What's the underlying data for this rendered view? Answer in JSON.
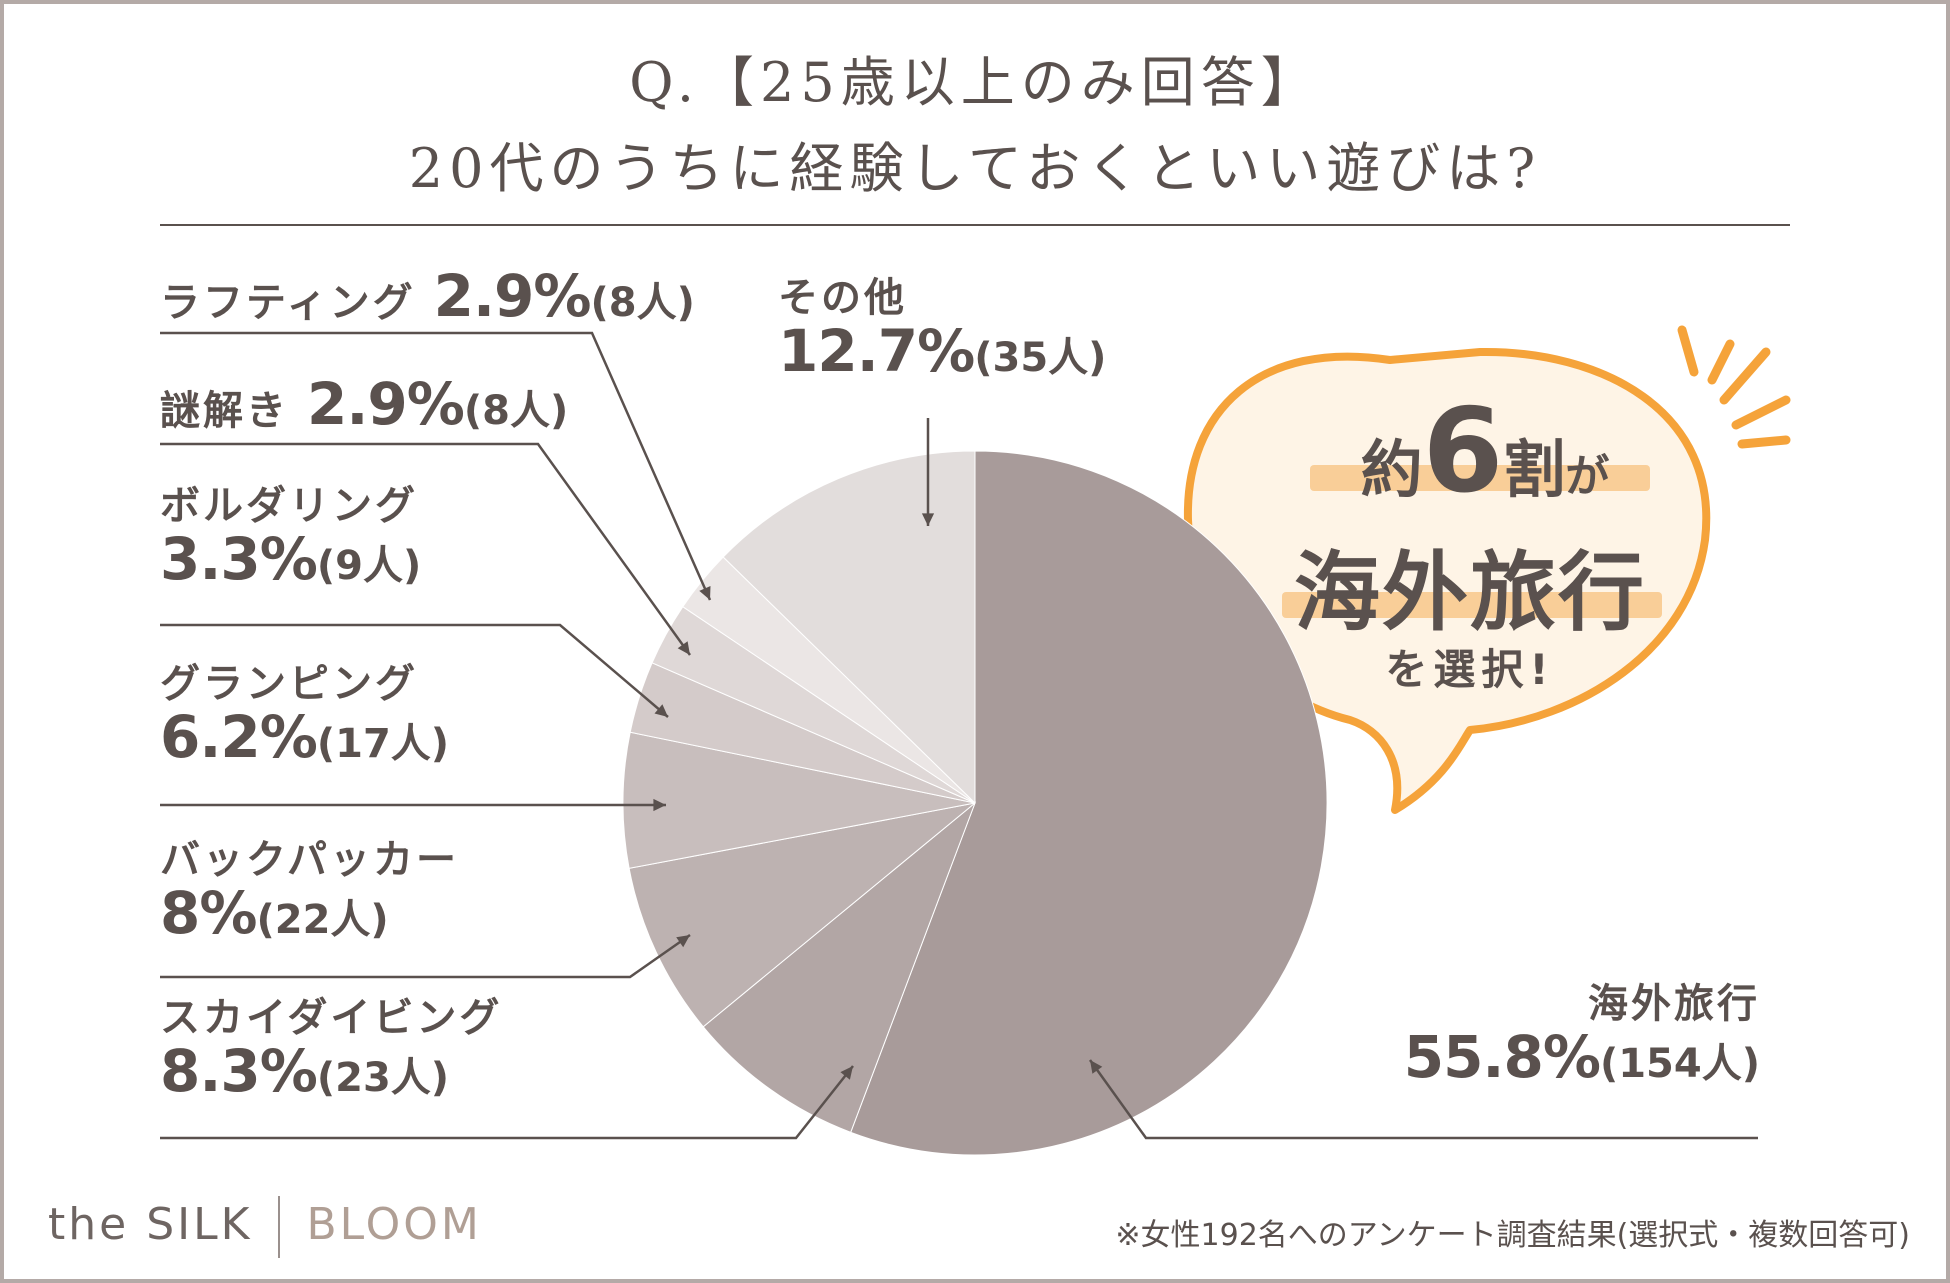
{
  "title_line1": "Q.【25歳以上のみ回答】",
  "title_line2": "20代のうちに経験しておくといい遊びは?",
  "callout": {
    "line1_pre": "約",
    "line1_num": "6",
    "line1_post": "割",
    "line1_tail": "が",
    "line2": "海外旅行",
    "line3": "を選択!"
  },
  "brand": {
    "left": "the SILK",
    "right": "BLOOM"
  },
  "footnote": "※女性192名へのアンケート調査結果(選択式・複数回答可)",
  "colors": {
    "text": "#5a514e",
    "accent": "#f5a33a",
    "callout_fill": "#fde9cf",
    "frame": "#b4aaa7"
  },
  "chart_data": {
    "type": "pie",
    "title": "20代のうちに経験しておくといい遊びは?",
    "slices": [
      {
        "name": "海外旅行",
        "percent": 55.8,
        "count": 154,
        "percent_label": "55.8%",
        "count_label": "(154人)",
        "color": "#a89b9a"
      },
      {
        "name": "スカイダイビング",
        "percent": 8.3,
        "count": 23,
        "percent_label": "8.3%",
        "count_label": "(23人)",
        "color": "#b2a6a5"
      },
      {
        "name": "バックパッカー",
        "percent": 8,
        "count": 22,
        "percent_label": "8%",
        "count_label": "(22人)",
        "color": "#bdb2b1"
      },
      {
        "name": "グランピング",
        "percent": 6.2,
        "count": 17,
        "percent_label": "6.2%",
        "count_label": "(17人)",
        "color": "#c8bebd"
      },
      {
        "name": "ボルダリング",
        "percent": 3.3,
        "count": 9,
        "percent_label": "3.3%",
        "count_label": "(9人)",
        "color": "#d4cbca"
      },
      {
        "name": "謎解き",
        "percent": 2.9,
        "count": 8,
        "percent_label": "2.9%",
        "count_label": "(8人)",
        "color": "#dfd8d7"
      },
      {
        "name": "ラフティング",
        "percent": 2.9,
        "count": 8,
        "percent_label": "2.9%",
        "count_label": "(8人)",
        "color": "#ebe6e5"
      },
      {
        "name": "その他",
        "percent": 12.7,
        "count": 35,
        "percent_label": "12.7%",
        "count_label": "(35人)",
        "color": "#e2dddc"
      }
    ]
  }
}
